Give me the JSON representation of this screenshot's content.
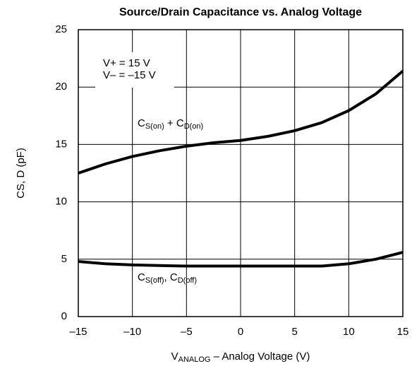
{
  "chart_data": {
    "type": "line",
    "title": "Source/Drain Capacitance vs. Analog Voltage",
    "x_label_parts": [
      "V",
      "ANALOG",
      " – Analog Voltage (V)"
    ],
    "y_label": "CS, D (pF)",
    "annotations": [
      "V+ = 15 V",
      "V– = –15 V"
    ],
    "x": [
      -15,
      -12.5,
      -10,
      -7.5,
      -5,
      -2.5,
      0,
      2.5,
      5,
      7.5,
      10,
      12.5,
      15
    ],
    "series": [
      {
        "name_parts": [
          "C",
          "S(on)",
          " + C",
          "D(on)"
        ],
        "color": "#000000",
        "values": [
          12.5,
          13.3,
          13.95,
          14.45,
          14.85,
          15.15,
          15.35,
          15.7,
          16.2,
          16.9,
          17.95,
          19.4,
          21.4
        ]
      },
      {
        "name_parts": [
          "C",
          "S(off)",
          ", C",
          "D(off)"
        ],
        "color": "#000000",
        "values": [
          4.8,
          4.6,
          4.5,
          4.45,
          4.4,
          4.4,
          4.4,
          4.4,
          4.4,
          4.4,
          4.6,
          5.0,
          5.6
        ]
      }
    ],
    "xlim": [
      -15,
      15
    ],
    "xticks": [
      {
        "value": -15,
        "label": "–15"
      },
      {
        "value": -10,
        "label": "–10"
      },
      {
        "value": -5,
        "label": "–5"
      },
      0,
      5,
      10,
      15
    ],
    "ylim": [
      0,
      25
    ],
    "yticks": [
      0,
      5,
      10,
      15,
      20,
      25
    ],
    "grid": true
  }
}
